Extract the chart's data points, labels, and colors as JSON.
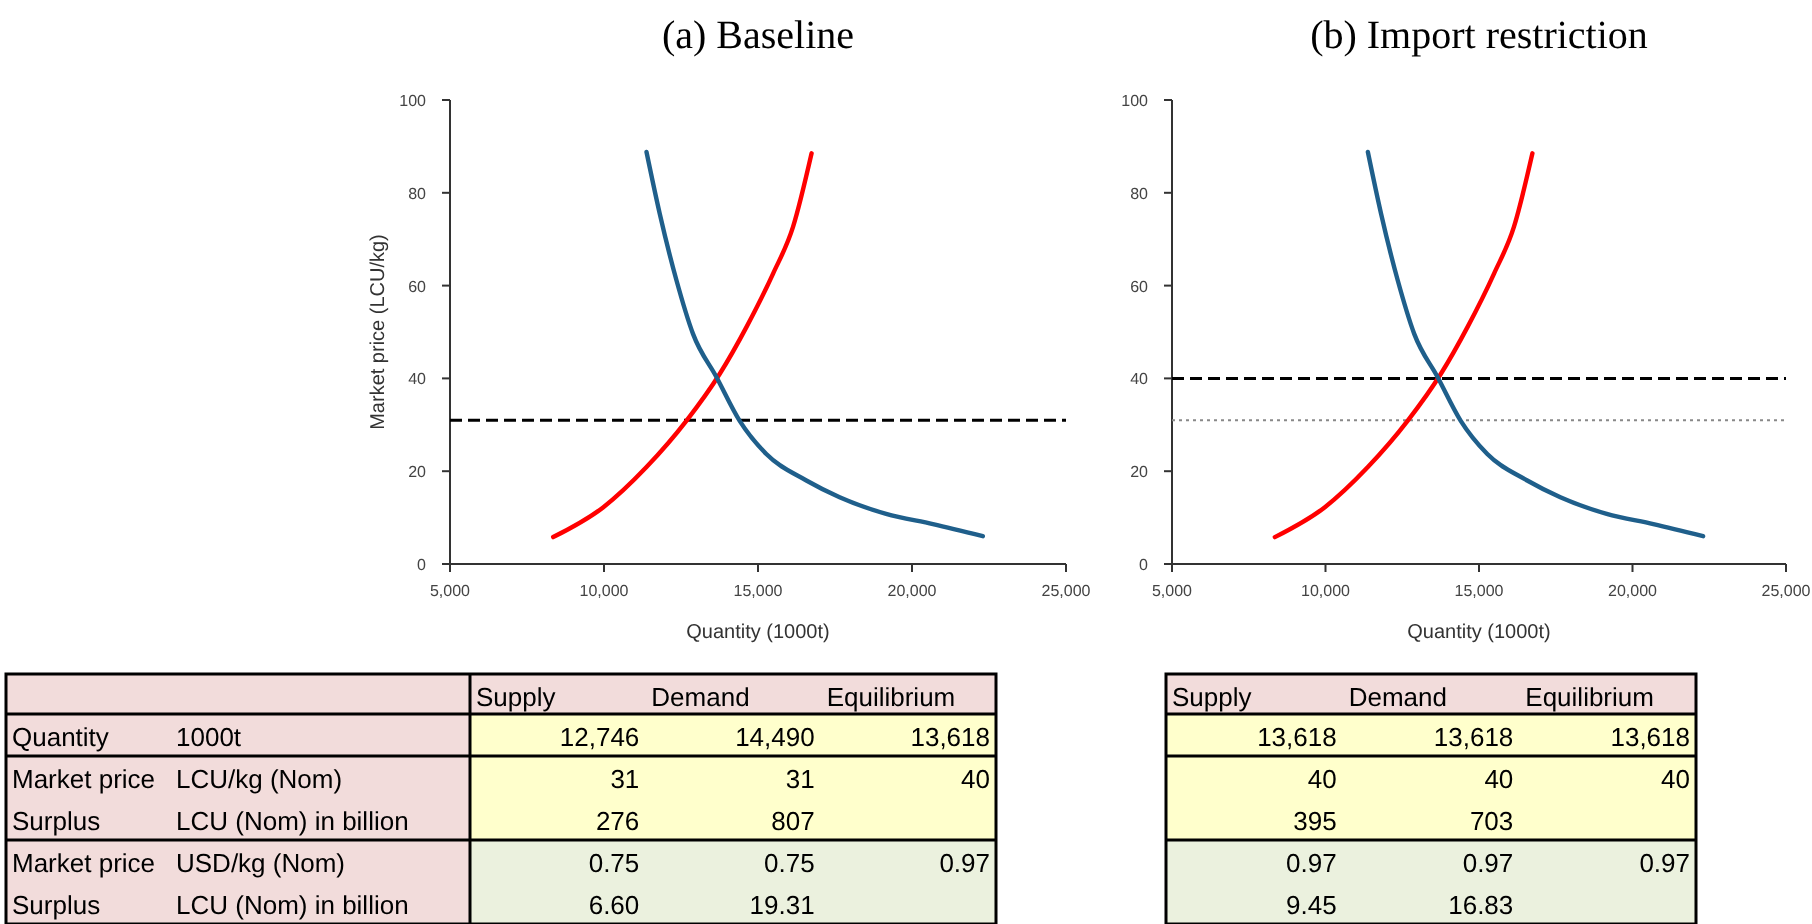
{
  "chart_data": [
    {
      "type": "line",
      "title": "(a) Baseline",
      "xlabel": "Quantity (1000t)",
      "ylabel": "Market price (LCU/kg)",
      "xlim": [
        5000,
        25000
      ],
      "xticks": [
        {
          "value": 5000,
          "label": "5,000"
        },
        {
          "value": 10000,
          "label": "10,000"
        },
        {
          "value": 15000,
          "label": "15,000"
        },
        {
          "value": 20000,
          "label": "20,000"
        },
        {
          "value": 25000,
          "label": "25,000"
        }
      ],
      "ylim": [
        0,
        100
      ],
      "yticks": [
        0,
        20,
        40,
        60,
        80,
        100
      ],
      "series": [
        {
          "color": "#ff0000",
          "x": [
            8350,
            9970,
            11380,
            12680,
            13760,
            14620,
            15490,
            16140,
            16740
          ],
          "values": [
            5.8,
            12.2,
            20.9,
            30.9,
            41,
            51,
            62.6,
            72.7,
            88.5
          ]
        },
        {
          "color": "#1f5f8b",
          "x": [
            11380,
            11810,
            12350,
            12890,
            13650,
            14400,
            15270,
            16570,
            17650,
            19160,
            20680,
            22300
          ],
          "values": [
            88.8,
            75.5,
            61.2,
            49.6,
            40.3,
            30.9,
            23.7,
            18,
            14.4,
            10.8,
            8.6,
            6
          ]
        }
      ],
      "ref_lines": [
        {
          "axis": "y",
          "value": 31,
          "color": "#000000",
          "line_style": "dashed"
        }
      ]
    },
    {
      "type": "line",
      "title": "(b) Import restriction",
      "xlabel": "Quantity (1000t)",
      "xlim": [
        5000,
        25000
      ],
      "xticks": [
        {
          "value": 5000,
          "label": "5,000"
        },
        {
          "value": 10000,
          "label": "10,000"
        },
        {
          "value": 15000,
          "label": "15,000"
        },
        {
          "value": 20000,
          "label": "20,000"
        },
        {
          "value": 25000,
          "label": "25,000"
        }
      ],
      "ylim": [
        0,
        100
      ],
      "yticks": [
        0,
        20,
        40,
        60,
        80,
        100
      ],
      "series": [
        {
          "color": "#ff0000",
          "x": [
            8350,
            9970,
            11380,
            12680,
            13760,
            14620,
            15490,
            16140,
            16740
          ],
          "values": [
            5.8,
            12.2,
            20.9,
            30.9,
            41,
            51,
            62.6,
            72.7,
            88.5
          ]
        },
        {
          "color": "#1f5f8b",
          "x": [
            11380,
            11810,
            12350,
            12890,
            13650,
            14400,
            15270,
            16570,
            17650,
            19160,
            20680,
            22300
          ],
          "values": [
            88.8,
            75.5,
            61.2,
            49.6,
            40.3,
            30.9,
            23.7,
            18,
            14.4,
            10.8,
            8.6,
            6
          ]
        }
      ],
      "ref_lines": [
        {
          "axis": "y",
          "value": 40,
          "color": "#000000",
          "line_style": "dashed"
        },
        {
          "axis": "y",
          "value": 31,
          "color": "#888888",
          "line_style": "dotted"
        }
      ]
    },
    {
      "type": "other",
      "categories": [
        "Supply",
        "Demand",
        "Equilibrium"
      ],
      "y_categories": [
        "Quantity",
        "Market price",
        "Surplus",
        "Market price",
        "Surplus"
      ],
      "y2_categories": [
        "1000t",
        "LCU/kg (Nom)",
        "LCU (Nom) in billion",
        "USD/kg (Nom)",
        "LCU (Nom) in billion"
      ],
      "cell_labels": [
        [
          "12,746",
          "14,490",
          "13,618"
        ],
        [
          "31",
          "31",
          "40"
        ],
        [
          "276",
          "807",
          null
        ],
        [
          "0.75",
          "0.75",
          "0.97"
        ],
        [
          "6.60",
          "19.31",
          null
        ]
      ]
    },
    {
      "type": "other",
      "categories": [
        "Supply",
        "Demand",
        "Equilibrium"
      ],
      "cell_labels": [
        [
          "13,618",
          "13,618",
          "13,618"
        ],
        [
          "40",
          "40",
          "40"
        ],
        [
          "395",
          "703",
          null
        ],
        [
          "0.97",
          "0.97",
          "0.97"
        ],
        [
          "9.45",
          "16.83",
          null
        ]
      ]
    }
  ]
}
